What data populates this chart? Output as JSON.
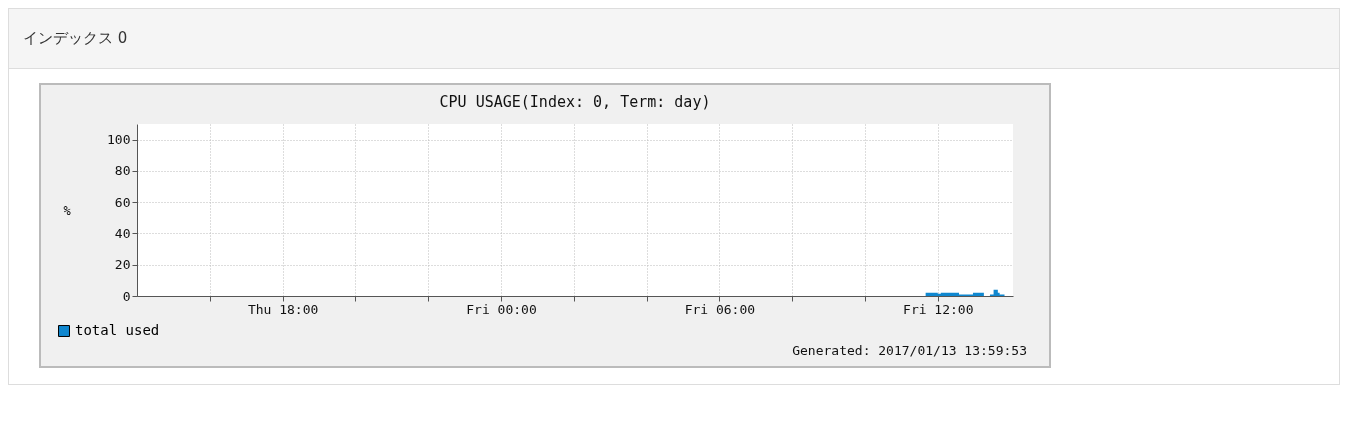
{
  "chart_data": {
    "type": "area",
    "title": "CPU USAGE(Index: 0, Term: day)",
    "ylabel": "%",
    "annotations": [
      "インデックス 0",
      "Generated: 2017/01/13 13:59:53"
    ],
    "x": [
      "2017-01-13T11:40",
      "2017-01-13T12:00",
      "2017-01-13T12:05",
      "2017-01-13T12:35",
      "2017-01-13T12:58",
      "2017-01-13T13:16",
      "2017-01-13T13:26",
      "2017-01-13T13:32",
      "2017-01-13T13:39",
      "2017-01-13T13:42",
      "2017-01-13T13:50"
    ],
    "series": [
      {
        "name": "total used",
        "color": "#0f87cf",
        "values": [
          2,
          1.5,
          2,
          1,
          2,
          0,
          1,
          4,
          2,
          1,
          0
        ]
      }
    ],
    "xlim": [
      "2017-01-12T14:00",
      "2017-01-13T14:04"
    ],
    "xticks": [
      {
        "value": "2017-01-12T16:00",
        "label": null
      },
      {
        "value": "2017-01-12T18:00",
        "label": "Thu 18:00"
      },
      {
        "value": "2017-01-12T20:00",
        "label": null
      },
      {
        "value": "2017-01-12T22:00",
        "label": null
      },
      {
        "value": "2017-01-13T00:00",
        "label": "Fri 00:00"
      },
      {
        "value": "2017-01-13T02:00",
        "label": null
      },
      {
        "value": "2017-01-13T04:00",
        "label": null
      },
      {
        "value": "2017-01-13T06:00",
        "label": "Fri 06:00"
      },
      {
        "value": "2017-01-13T08:00",
        "label": null
      },
      {
        "value": "2017-01-13T10:00",
        "label": null
      },
      {
        "value": "2017-01-13T12:00",
        "label": "Fri 12:00"
      }
    ],
    "ylim": [
      0,
      110
    ],
    "yticks": [
      0,
      20,
      40,
      60,
      80,
      100
    ],
    "grid": true,
    "legend": "bottom left"
  }
}
